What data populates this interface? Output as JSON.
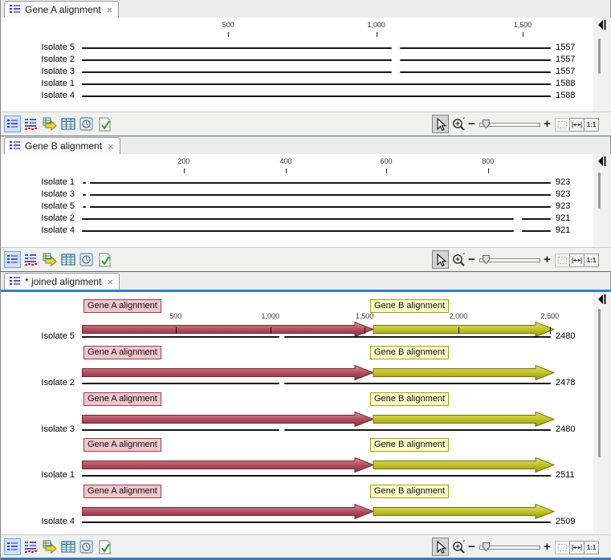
{
  "colors": {
    "focus_line": "#2e80d0",
    "bottom_edge": "#3e78b5",
    "gene_a_label_bg": "#efc6cc",
    "gene_a_label_border": "#96404e",
    "gene_a_arrow": "#b04f60",
    "gene_b_label_bg": "#fcfcca",
    "gene_b_label_border": "#a0a014",
    "gene_b_arrow": "#c2c22a"
  },
  "toolbar": {
    "minus": "−",
    "plus": "+",
    "ratio": "1:1"
  },
  "panels": [
    {
      "tab": "Gene A alignment",
      "close": "×",
      "ruler": [
        {
          "label": "500",
          "pct": 31.2
        },
        {
          "label": "1,000",
          "pct": 62.8
        },
        {
          "label": "1,500",
          "pct": 94.0
        }
      ],
      "rows": [
        {
          "label": "Isolate 5",
          "value": "1557",
          "segments": [
            [
              0,
              66.1
            ],
            [
              67.8,
              100
            ]
          ]
        },
        {
          "label": "Isolate 2",
          "value": "1557",
          "segments": [
            [
              0,
              66.1
            ],
            [
              67.8,
              100
            ]
          ]
        },
        {
          "label": "Isolate 3",
          "value": "1557",
          "segments": [
            [
              0,
              66.1
            ],
            [
              67.8,
              100
            ]
          ]
        },
        {
          "label": "Isolate 1",
          "value": "1588",
          "segments": [
            [
              0,
              100
            ]
          ]
        },
        {
          "label": "Isolate 4",
          "value": "1588",
          "segments": [
            [
              0,
              100
            ]
          ]
        }
      ]
    },
    {
      "tab": "Gene B alignment",
      "close": "×",
      "ruler": [
        {
          "label": "200",
          "pct": 21.7
        },
        {
          "label": "400",
          "pct": 43.5
        },
        {
          "label": "600",
          "pct": 64.9
        },
        {
          "label": "800",
          "pct": 86.6
        }
      ],
      "rows": [
        {
          "label": "Isolate 1",
          "value": "923",
          "segments": [
            [
              0.2,
              0.9
            ],
            [
              1.7,
              100
            ]
          ]
        },
        {
          "label": "Isolate 3",
          "value": "923",
          "segments": [
            [
              0.2,
              0.9
            ],
            [
              1.7,
              100
            ]
          ]
        },
        {
          "label": "Isolate 5",
          "value": "923",
          "segments": [
            [
              0.2,
              0.9
            ],
            [
              1.7,
              100
            ]
          ]
        },
        {
          "label": "Isolate 2",
          "value": "921",
          "segments": [
            [
              0,
              92.2
            ],
            [
              93.9,
              100
            ]
          ]
        },
        {
          "label": "Isolate 4",
          "value": "921",
          "segments": [
            [
              0,
              92.2
            ],
            [
              93.9,
              100
            ]
          ]
        }
      ]
    },
    {
      "tab": "* joined alignment",
      "close": "×",
      "features": {
        "gene_a": "Gene A alignment",
        "gene_b": "Gene B alignment"
      },
      "ruler": [
        {
          "label": "500",
          "pct": 20.0
        },
        {
          "label": "1,000",
          "pct": 40.2
        },
        {
          "label": "1,500",
          "pct": 60.3
        },
        {
          "label": "2,000",
          "pct": 80.3
        },
        {
          "label": "2,500",
          "pct": 99.8
        }
      ],
      "rows": [
        {
          "label": "Isolate 5",
          "value": "2480",
          "segments": [
            [
              0,
              42.1
            ],
            [
              43.2,
              100
            ]
          ]
        },
        {
          "label": "Isolate 2",
          "value": "2478",
          "segments": [
            [
              0,
              42.1
            ],
            [
              43.2,
              100
            ]
          ]
        },
        {
          "label": "Isolate 3",
          "value": "2480",
          "segments": [
            [
              0,
              42.1
            ],
            [
              43.2,
              100
            ]
          ]
        },
        {
          "label": "Isolate 1",
          "value": "2511",
          "segments": [
            [
              0,
              100
            ]
          ]
        },
        {
          "label": "Isolate 4",
          "value": "2509",
          "segments": [
            [
              0,
              100
            ]
          ]
        }
      ]
    }
  ]
}
